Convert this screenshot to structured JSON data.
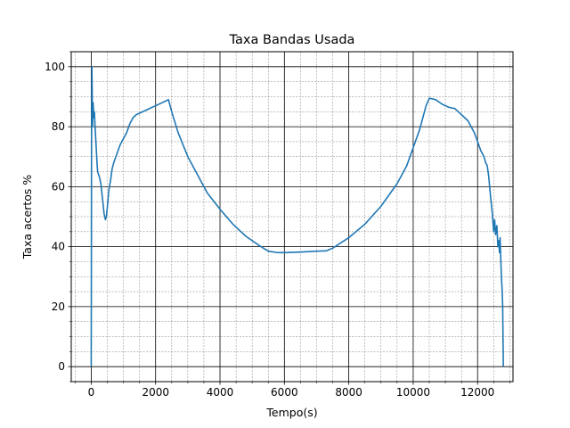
{
  "chart_data": {
    "type": "line",
    "title": "Taxa Bandas Usada",
    "xlabel": "Tempo(s)",
    "ylabel": "Taxa acertos %",
    "xlim": [
      -620,
      13100
    ],
    "ylim": [
      -5,
      105
    ],
    "x_ticks": [
      0,
      2000,
      4000,
      6000,
      8000,
      10000,
      12000
    ],
    "x_tick_labels": [
      "0",
      "2000",
      "4000",
      "6000",
      "8000",
      "10000",
      "12000"
    ],
    "y_ticks": [
      0,
      20,
      40,
      60,
      80,
      100
    ],
    "y_tick_labels": [
      "0",
      "20",
      "40",
      "60",
      "80",
      "100"
    ],
    "x_minor_step": 500,
    "y_minor_step": 5,
    "grid": {
      "major": true,
      "minor": true
    },
    "colors": {
      "line": "#1f77b4",
      "major_grid": "#000000",
      "minor_grid": "#808080"
    },
    "series": [
      {
        "x": [
          0,
          5,
          10,
          20,
          30,
          40,
          60,
          80,
          100,
          120,
          140,
          160,
          180,
          200,
          230,
          260,
          300,
          350,
          400,
          440,
          470,
          500,
          550,
          600,
          650,
          700,
          800,
          900,
          1000,
          1100,
          1200,
          1300,
          1400,
          1500,
          1600,
          1700,
          1800,
          2000,
          2200,
          2300,
          2400,
          2500,
          2700,
          3000,
          3300,
          3600,
          4000,
          4400,
          4800,
          5200,
          5500,
          5800,
          6000,
          6500,
          7000,
          7300,
          7500,
          8000,
          8500,
          9000,
          9500,
          9800,
          10000,
          10200,
          10300,
          10400,
          10500,
          10700,
          10900,
          11100,
          11300,
          11500,
          11700,
          11800,
          11900,
          12000,
          12100,
          12200,
          12250,
          12300,
          12350,
          12400,
          12450,
          12500,
          12530,
          12560,
          12600,
          12630,
          12660,
          12680,
          12700,
          12720,
          12740,
          12760,
          12780,
          12790,
          12800
        ],
        "y": [
          0,
          30,
          75,
          100,
          92,
          80,
          88,
          83,
          85,
          80,
          76,
          72,
          68,
          65,
          64,
          63,
          61,
          56,
          51,
          49,
          50,
          53,
          59,
          62,
          66,
          68,
          71,
          74,
          76,
          78,
          81,
          83,
          84,
          84.5,
          85,
          85.5,
          86,
          87,
          88,
          88.5,
          89,
          85,
          78,
          70,
          64,
          58,
          52.5,
          47.5,
          43.5,
          40.5,
          38.5,
          38,
          38,
          38.2,
          38.5,
          38.6,
          39.5,
          43,
          47.5,
          53.5,
          61,
          67,
          73,
          79,
          83,
          87,
          89.5,
          89,
          87.5,
          86.5,
          86,
          84,
          82,
          80,
          78,
          75,
          72,
          70,
          68,
          67,
          63,
          57,
          52,
          45,
          49,
          44,
          47,
          40,
          42,
          38,
          43,
          36,
          30,
          26,
          20,
          10,
          0
        ]
      }
    ]
  }
}
